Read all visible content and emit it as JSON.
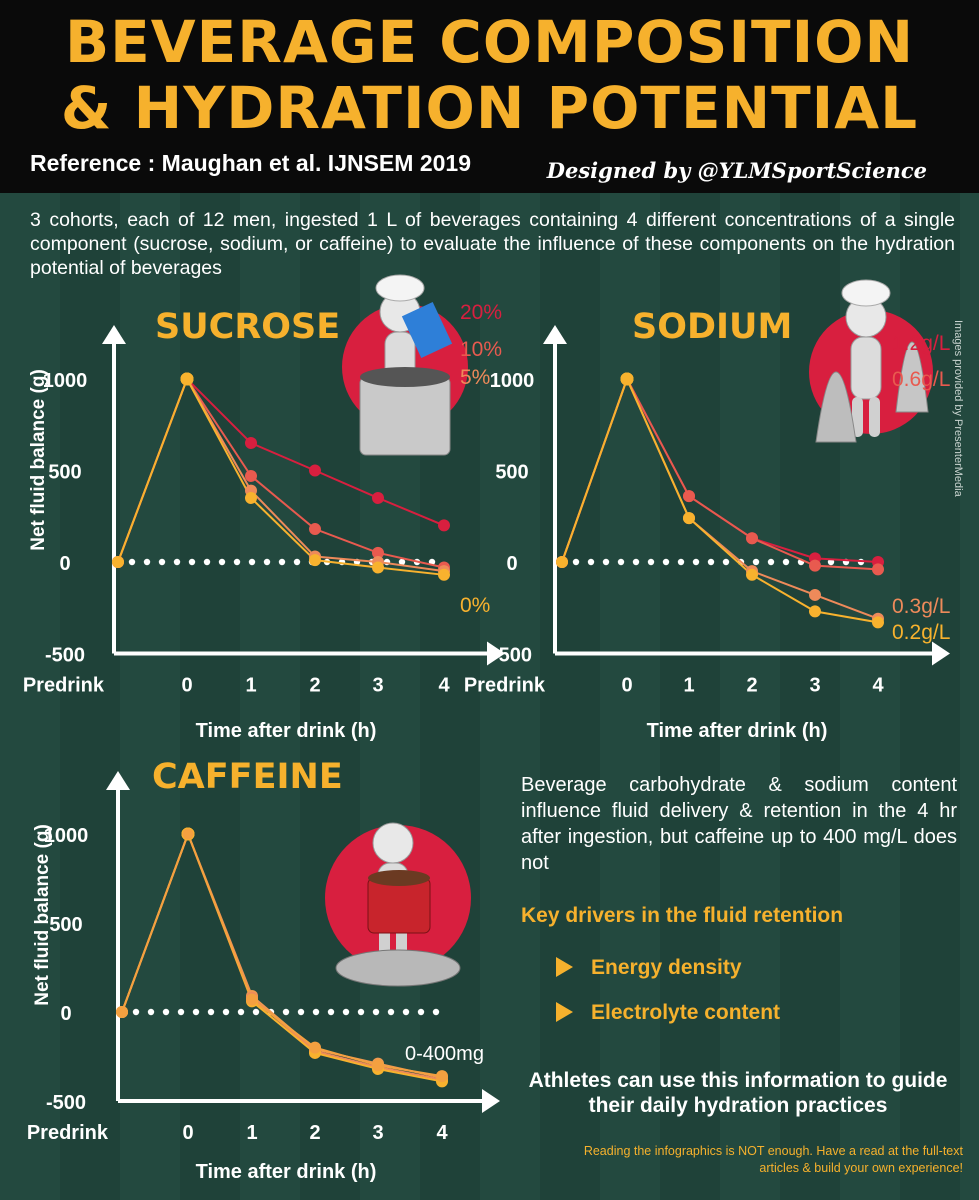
{
  "header": {
    "title_line1": "BEVERAGE COMPOSITION",
    "title_line2": "& HYDRATION POTENTIAL",
    "reference": "Reference : Maughan et al. IJNSEM 2019",
    "designer": "Designed by @YLMSportScience"
  },
  "intro": "3 cohorts, each of 12 men, ingested 1 L of beverages containing 4 different concentrations of a single component (sucrose, sodium, or caffeine) to evaluate the influence of these components on the hydration potential of beverages",
  "image_credit": "Images provided by PresenterMedia",
  "colors": {
    "accent": "#f6b12d",
    "red": "#d81f3f",
    "red_mid": "#e85a4f",
    "orange": "#ee8a5a",
    "yellow": "#f8b22e",
    "bg": "#23493f",
    "header_bg": "#0a0a0a"
  },
  "chart_data": [
    {
      "type": "line",
      "title": "SUCROSE",
      "xlabel": "Time after drink (h)",
      "ylabel": "Net fluid balance (g)",
      "categories": [
        "Predrink",
        "0",
        "1",
        "2",
        "3",
        "4"
      ],
      "yticks": [
        "1000",
        "500",
        "0",
        "-500"
      ],
      "ylim": [
        -500,
        1000
      ],
      "series": [
        {
          "name": "20%",
          "values": [
            0,
            1000,
            650,
            500,
            350,
            200
          ]
        },
        {
          "name": "10%",
          "values": [
            0,
            1000,
            470,
            180,
            50,
            -30
          ]
        },
        {
          "name": "5%",
          "values": [
            0,
            1000,
            390,
            30,
            0,
            -50
          ]
        },
        {
          "name": "0%",
          "values": [
            0,
            1000,
            350,
            10,
            -30,
            -70
          ]
        }
      ]
    },
    {
      "type": "line",
      "title": "SODIUM",
      "xlabel": "Time after drink (h)",
      "ylabel": "",
      "categories": [
        "Predrink",
        "0",
        "1",
        "2",
        "3",
        "4"
      ],
      "yticks": [
        "1000",
        "500",
        "0",
        "-500"
      ],
      "ylim": [
        -500,
        1000
      ],
      "series": [
        {
          "name": "1.2g/L",
          "values": [
            0,
            1000,
            360,
            130,
            20,
            0
          ]
        },
        {
          "name": "0.6g/L",
          "values": [
            0,
            1000,
            360,
            130,
            -20,
            -40
          ]
        },
        {
          "name": "0.3g/L",
          "values": [
            0,
            1000,
            240,
            -50,
            -180,
            -310
          ]
        },
        {
          "name": "0.2g/L",
          "values": [
            0,
            1000,
            240,
            -70,
            -270,
            -330
          ]
        }
      ]
    },
    {
      "type": "line",
      "title": "CAFFEINE",
      "xlabel": "Time after drink (h)",
      "ylabel": "Net fluid balance (g)",
      "categories": [
        "Predrink",
        "0",
        "1",
        "2",
        "3",
        "4"
      ],
      "yticks": [
        "1000",
        "500",
        "0",
        "-500"
      ],
      "ylim": [
        -500,
        1000
      ],
      "label": "0-400mg",
      "series": [
        {
          "values": [
            0,
            1000,
            90,
            -210,
            -290,
            -370
          ]
        },
        {
          "values": [
            0,
            1000,
            80,
            -220,
            -310,
            -380
          ]
        },
        {
          "values": [
            0,
            1000,
            60,
            -230,
            -320,
            -390
          ]
        },
        {
          "values": [
            0,
            1000,
            70,
            -200,
            -300,
            -360
          ]
        }
      ]
    }
  ],
  "summary": "Beverage carbohydrate & sodium content influence fluid delivery & retention in the 4 hr after ingestion, but caffeine up to 400 mg/L does not",
  "drivers": {
    "title": "Key drivers in the fluid retention",
    "items": [
      "Energy density",
      "Electrolyte content"
    ]
  },
  "takeaway": "Athletes can use this information to guide their daily hydration practices",
  "footnote": "Reading the infographics is NOT enough. Have a read at the full-text articles & build your own experience!"
}
